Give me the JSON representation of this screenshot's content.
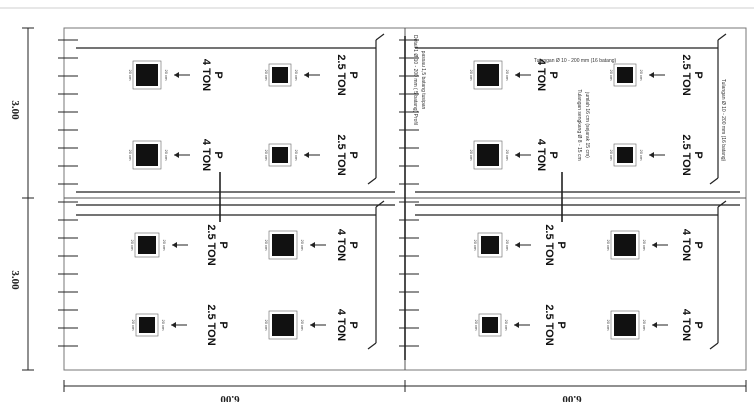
{
  "dimensions": {
    "vertical": [
      "3.00",
      "3.00"
    ],
    "horizontal": [
      "6.00",
      "6.00"
    ]
  },
  "loads": {
    "p_label": "P",
    "heavy": "4 TON",
    "light": "2.5 TON"
  },
  "footing_dim_label": "20 cm",
  "notes": {
    "top_bar": "Tulangan Ø 10 - 200 mm (16 batang)",
    "side_bar": "Tulangan Ø 10 - 200 mm (16 batang)",
    "vertical_1": "Detail 1 Ø 10 - 200 mm ( 5 batang) Profil",
    "vertical_2": "passau 1,5 batang tusipan",
    "vertical_3": "Tulangan sengkang Ø 8 - 15 cm",
    "vertical_4": "jumlah 16 cm (sejarak 15 cm)"
  },
  "colors": {
    "line": "#222222",
    "border": "#9a9a9a",
    "footing": "#111111"
  }
}
